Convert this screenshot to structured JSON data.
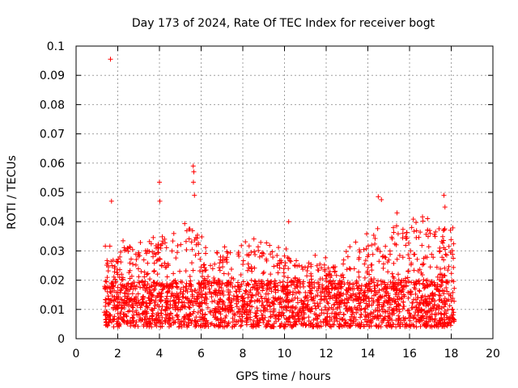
{
  "chart_data": {
    "type": "scatter",
    "title": "Day 173 of 2024, Rate Of TEC Index for receiver bogt",
    "xlabel": "GPS time / hours",
    "ylabel": "ROTI / TECUs",
    "xlim": [
      0,
      20
    ],
    "ylim": [
      0,
      0.1
    ],
    "grid": true,
    "marker": "plus",
    "color": "#ff0000",
    "xticks": [
      "0",
      "2",
      "4",
      "6",
      "8",
      "10",
      "12",
      "14",
      "16",
      "18",
      "20"
    ],
    "yticks": [
      "0",
      "0.01",
      "0.02",
      "0.03",
      "0.04",
      "0.05",
      "0.06",
      "0.07",
      "0.08",
      "0.09",
      "0.1"
    ],
    "x_data_range": [
      1.35,
      18.15
    ],
    "outliers": [
      {
        "x": 1.65,
        "y": 0.0955
      },
      {
        "x": 1.7,
        "y": 0.047
      },
      {
        "x": 4.0,
        "y": 0.0535
      },
      {
        "x": 4.02,
        "y": 0.047
      },
      {
        "x": 5.62,
        "y": 0.059
      },
      {
        "x": 5.65,
        "y": 0.057
      },
      {
        "x": 5.63,
        "y": 0.0535
      },
      {
        "x": 5.68,
        "y": 0.049
      },
      {
        "x": 10.2,
        "y": 0.04
      },
      {
        "x": 14.5,
        "y": 0.0485
      },
      {
        "x": 14.65,
        "y": 0.0475
      },
      {
        "x": 15.4,
        "y": 0.043
      },
      {
        "x": 17.65,
        "y": 0.049
      },
      {
        "x": 17.7,
        "y": 0.045
      }
    ],
    "envelope": [
      {
        "x": 1.5,
        "upper": 0.03
      },
      {
        "x": 2.5,
        "upper": 0.033
      },
      {
        "x": 3.5,
        "upper": 0.035
      },
      {
        "x": 4.5,
        "upper": 0.034
      },
      {
        "x": 5.5,
        "upper": 0.04
      },
      {
        "x": 6.5,
        "upper": 0.03
      },
      {
        "x": 7.5,
        "upper": 0.032
      },
      {
        "x": 8.5,
        "upper": 0.034
      },
      {
        "x": 9.5,
        "upper": 0.03
      },
      {
        "x": 10.5,
        "upper": 0.03
      },
      {
        "x": 11.5,
        "upper": 0.027
      },
      {
        "x": 12.5,
        "upper": 0.027
      },
      {
        "x": 13.5,
        "upper": 0.033
      },
      {
        "x": 14.5,
        "upper": 0.036
      },
      {
        "x": 15.5,
        "upper": 0.038
      },
      {
        "x": 16.5,
        "upper": 0.04
      },
      {
        "x": 17.5,
        "upper": 0.038
      }
    ]
  }
}
